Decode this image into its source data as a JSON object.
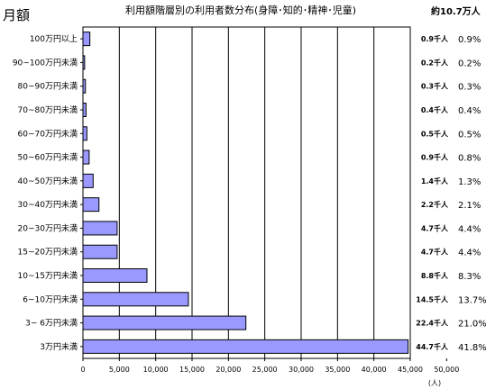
{
  "chart_data": {
    "type": "bar",
    "orientation": "horizontal",
    "title": "利用額階層別の利用者数分布(身障･知的･精神･児童)",
    "ylabel": "月額",
    "xlabel": "",
    "total_label": "約10.7万人",
    "x_unit": "(人)",
    "xlim": [
      0,
      50000
    ],
    "x_ticks": [
      0,
      5000,
      10000,
      15000,
      20000,
      25000,
      30000,
      35000,
      40000,
      45000,
      50000
    ],
    "x_tick_labels": [
      "0",
      "5,000",
      "10,000",
      "15,000",
      "20,000",
      "25,000",
      "30,000",
      "35,000",
      "40,000",
      "45,000",
      "50,000"
    ],
    "grid": true,
    "bar_color": "#9999ff",
    "categories": [
      "100万円以上",
      "90~100万円未満",
      "80~90万円未満",
      "70~80万円未満",
      "60~70万円未満",
      "50~60万円未満",
      "40~50万円未満",
      "30~40万円未満",
      "20~30万円未満",
      "15~20万円未満",
      "10~15万円未満",
      "6~10万円未満",
      "3~ 6万円未満",
      "3万円未満"
    ],
    "values": [
      950,
      230,
      340,
      420,
      540,
      850,
      1400,
      2200,
      4700,
      4700,
      8800,
      14500,
      22400,
      44700
    ],
    "count_labels": [
      "0.9千人",
      "0.2千人",
      "0.3千人",
      "0.4千人",
      "0.5千人",
      "0.9千人",
      "1.4千人",
      "2.2千人",
      "4.7千人",
      "4.7千人",
      "8.8千人",
      "14.5千人",
      "22.4千人",
      "44.7千人"
    ],
    "percent_labels": [
      "0.9%",
      "0.2%",
      "0.3%",
      "0.4%",
      "0.5%",
      "0.8%",
      "1.3%",
      "2.1%",
      "4.4%",
      "4.4%",
      "8.3%",
      "13.7%",
      "21.0%",
      "41.8%"
    ]
  }
}
